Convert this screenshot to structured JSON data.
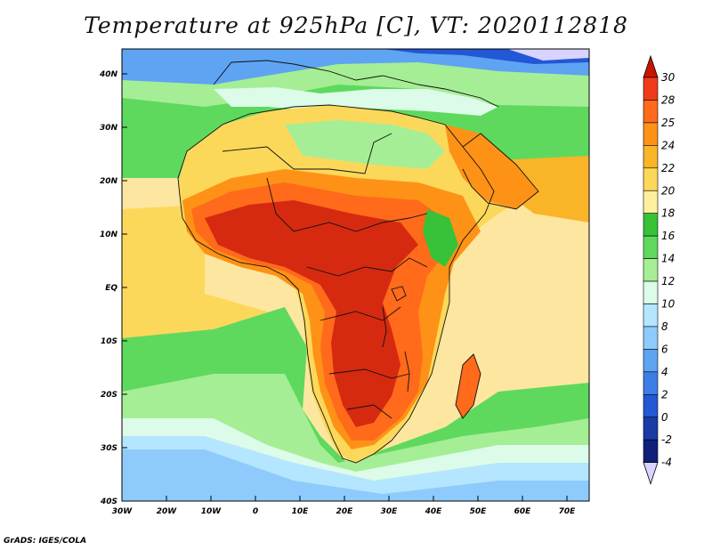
{
  "title": "Temperature at 925hPa [C], VT: 2020112818",
  "credit": "GrADS: IGES/COLA",
  "map": {
    "variable": "Temperature",
    "level": "925hPa",
    "units": "C",
    "valid_time": "2020112818",
    "lon_labels": [
      "30W",
      "20W",
      "10W",
      "0",
      "10E",
      "20E",
      "30E",
      "40E",
      "50E",
      "60E",
      "70E"
    ],
    "lat_labels": [
      "40N",
      "30N",
      "20N",
      "10N",
      "EQ",
      "10S",
      "20S",
      "30S",
      "40S"
    ],
    "colorbar": {
      "labels": [
        "30",
        "28",
        "25",
        "24",
        "22",
        "20",
        "18",
        "16",
        "14",
        "12",
        "10",
        "8",
        "6",
        "4",
        "2",
        "0",
        "-2",
        "-4"
      ],
      "colors": [
        "#f03b1b",
        "#ff6a1b",
        "#fd9216",
        "#f9b428",
        "#fcd85a",
        "#fff0a0",
        "#37c237",
        "#5ed95e",
        "#a5ee95",
        "#dcfbe8",
        "#b5e6ff",
        "#8ecbfc",
        "#5ea4f2",
        "#3c7ee6",
        "#2257d6",
        "#1a3aa5",
        "#0f1f7a"
      ],
      "top_color": "#ca1400",
      "bottom_color": "#d8d3ff"
    },
    "colors": {
      "hot_core": "#d52a10",
      "hot": "#ff6a1b",
      "warm": "#fd9216",
      "warm2": "#f9b428",
      "tan": "#fcd85a",
      "ocean_warm": "#fde6a0",
      "green_dark": "#37c237",
      "green": "#5ed95e",
      "green_light": "#a5ee95",
      "mint": "#dcfbe8",
      "sky": "#b5e6ff",
      "blue_light": "#8ecbfc",
      "blue": "#5ea4f2",
      "blue_mid": "#3c7ee6",
      "blue_dark": "#2257d6",
      "cold": "#d8d3ff"
    }
  }
}
